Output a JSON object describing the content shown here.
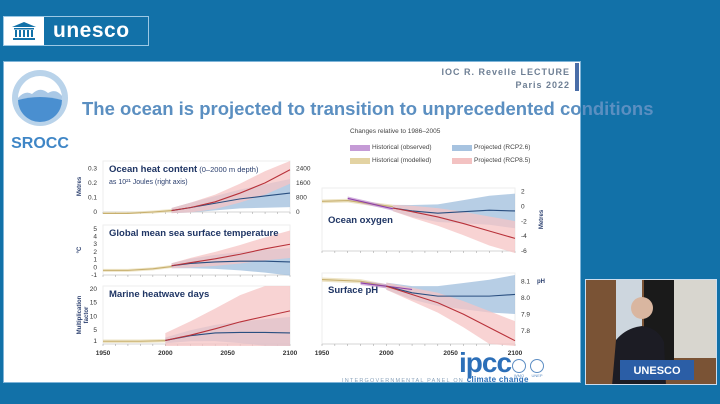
{
  "header": {
    "brand": "unesco",
    "brand_icon": "temple-icon"
  },
  "slide": {
    "lecture_line1": "IOC R. Revelle LECTURE",
    "lecture_line2": "Paris 2022",
    "report_logo": "SROCC",
    "title": "The ocean is projected to transition to unprecedented conditions",
    "legend": {
      "heading": "Changes relative to 1986–2005",
      "items": [
        {
          "label": "Historical (observed)",
          "color": "#a05fb8"
        },
        {
          "label": "Projected (RCP2.6)",
          "color": "#3a6a9e"
        },
        {
          "label": "Historical (modelled)",
          "color": "#c8b06e"
        },
        {
          "label": "Projected (RCP8.5)",
          "color": "#d14a4a"
        }
      ]
    },
    "footer": {
      "ipcc": "ipcc",
      "ipcc_sub_prefix": "INTERGOVERNMENTAL PANEL ON",
      "ipcc_sub_emph": "climate change",
      "org1": "WMO",
      "org2": "UNEP"
    }
  },
  "chart_data": [
    {
      "type": "line",
      "title": "Ocean heat content",
      "title_suffix": "(0–2000 m depth)",
      "subtitle": "as 10^21 Joules (right axis)",
      "ylabel": "Metres",
      "yticks": [
        "0",
        "0.1",
        "0.2",
        "0.3"
      ],
      "y2ticks": [
        "0",
        "800",
        "1600",
        "2400"
      ],
      "ylim": [
        0,
        0.35
      ],
      "x": [
        1950,
        1970,
        1990,
        2005,
        2020,
        2040,
        2060,
        2080,
        2100
      ],
      "series": [
        {
          "name": "Historical (modelled)",
          "values": [
            -0.01,
            -0.01,
            0,
            0.01,
            null,
            null,
            null,
            null,
            null
          ]
        },
        {
          "name": "Projected (RCP2.6)",
          "values": [
            null,
            null,
            null,
            0.01,
            0.03,
            0.06,
            0.09,
            0.11,
            0.13
          ]
        },
        {
          "name": "Projected (RCP8.5)",
          "values": [
            null,
            null,
            null,
            0.01,
            0.03,
            0.07,
            0.13,
            0.2,
            0.29
          ]
        }
      ]
    },
    {
      "type": "line",
      "title": "Global mean sea surface temperature",
      "ylabel": "°C",
      "yticks": [
        "-1",
        "0",
        "1",
        "2",
        "3",
        "4",
        "5"
      ],
      "ylim": [
        -1,
        5.5
      ],
      "x": [
        1950,
        1970,
        1990,
        2005,
        2020,
        2040,
        2060,
        2080,
        2100
      ],
      "series": [
        {
          "name": "Historical (modelled)",
          "values": [
            -0.4,
            -0.4,
            -0.2,
            0.1,
            null,
            null,
            null,
            null,
            null
          ]
        },
        {
          "name": "Projected (RCP2.6)",
          "values": [
            null,
            null,
            null,
            0.2,
            0.5,
            0.7,
            0.8,
            0.8,
            0.7
          ]
        },
        {
          "name": "Projected (RCP8.5)",
          "values": [
            null,
            null,
            null,
            0.2,
            0.6,
            1.1,
            1.7,
            2.4,
            3.0
          ]
        }
      ]
    },
    {
      "type": "line",
      "title": "Marine heatwave days",
      "ylabel": "Multiplication factor",
      "yticks": [
        "1",
        "5",
        "10",
        "15",
        "20"
      ],
      "xticks": [
        "1950",
        "2000",
        "2050",
        "2100"
      ],
      "ylim": [
        0,
        21
      ],
      "x": [
        1950,
        1980,
        2000,
        2020,
        2040,
        2060,
        2080,
        2100
      ],
      "series": [
        {
          "name": "Historical (modelled)",
          "values": [
            1,
            1,
            1.2,
            null,
            null,
            null,
            null,
            null
          ]
        },
        {
          "name": "Projected (RCP2.6)",
          "values": [
            null,
            null,
            1.3,
            3,
            4,
            4.2,
            4.2,
            4
          ]
        },
        {
          "name": "Projected (RCP8.5)",
          "values": [
            null,
            null,
            1.3,
            3.2,
            5.5,
            8,
            10,
            12
          ]
        }
      ]
    },
    {
      "type": "line",
      "title": "Ocean oxygen",
      "ylabel": "Metres",
      "y2ticks": [
        "-6",
        "-4",
        "-2",
        "0",
        "2"
      ],
      "ylim": [
        -6,
        2.5
      ],
      "x": [
        1950,
        1970,
        1990,
        2005,
        2020,
        2040,
        2060,
        2080,
        2100
      ],
      "series": [
        {
          "name": "Historical (modelled)",
          "values": [
            0.7,
            0.8,
            0.3,
            0.0,
            null,
            null,
            null,
            null,
            null
          ]
        },
        {
          "name": "Historical (observed)",
          "values": [
            null,
            1.1,
            0.3,
            -0.3,
            null,
            null,
            null,
            null,
            null
          ]
        },
        {
          "name": "Projected (RCP2.6)",
          "values": [
            null,
            null,
            null,
            -0.2,
            -0.6,
            -0.9,
            -0.7,
            -0.5,
            -0.6
          ]
        },
        {
          "name": "Projected (RCP8.5)",
          "values": [
            null,
            null,
            null,
            -0.2,
            -0.7,
            -1.4,
            -2.3,
            -3.3,
            -4.3
          ]
        }
      ]
    },
    {
      "type": "line",
      "title": "Surface pH",
      "ylabel": "pH",
      "y2ticks": [
        "7.8",
        "7.9",
        "8.0",
        "8.1"
      ],
      "xticks": [
        "1950",
        "2000",
        "2050",
        "2100"
      ],
      "ylim": [
        7.72,
        8.15
      ],
      "x": [
        1950,
        1980,
        2000,
        2020,
        2040,
        2060,
        2080,
        2100
      ],
      "series": [
        {
          "name": "Historical (modelled)",
          "values": [
            8.11,
            8.1,
            8.07,
            null,
            null,
            null,
            null,
            null
          ]
        },
        {
          "name": "Historical (observed)",
          "values": [
            null,
            8.09,
            8.07,
            8.05,
            null,
            null,
            null,
            null
          ]
        },
        {
          "name": "Projected (RCP2.6)",
          "values": [
            null,
            null,
            8.07,
            8.03,
            8.01,
            8.01,
            8.01,
            8.02
          ]
        },
        {
          "name": "Projected (RCP8.5)",
          "values": [
            null,
            null,
            8.07,
            8.02,
            7.97,
            7.9,
            7.82,
            7.74
          ]
        }
      ]
    }
  ]
}
